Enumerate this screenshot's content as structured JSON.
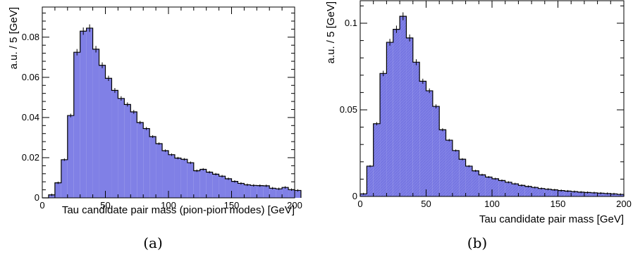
{
  "colors": {
    "fill": "#8080e6",
    "line": "#000000",
    "hatch": "#6e6ede"
  },
  "chart_data": [
    {
      "type": "bar",
      "caption": "(a)",
      "xlabel": "Tau candidate pair mass (pion-pion modes) [GeV]",
      "ylabel": "a.u. / 5 [GeV]",
      "xlim": [
        0,
        200
      ],
      "ylim": [
        0,
        0.095
      ],
      "bin_width": 5,
      "x_ticks": [
        0,
        50,
        100,
        150,
        200
      ],
      "y_ticks": [
        0,
        0.02,
        0.04,
        0.06,
        0.08
      ],
      "y_tick_labels": [
        "0",
        "0.02",
        "0.04",
        "0.06",
        "0.08"
      ],
      "bin_edges_start": 0,
      "values": [
        0.0,
        0.0015,
        0.0075,
        0.019,
        0.041,
        0.0725,
        0.083,
        0.0845,
        0.074,
        0.066,
        0.0595,
        0.0535,
        0.0495,
        0.0465,
        0.0428,
        0.0375,
        0.0345,
        0.0305,
        0.027,
        0.0235,
        0.0215,
        0.0198,
        0.0192,
        0.0175,
        0.0135,
        0.0142,
        0.0128,
        0.0118,
        0.0108,
        0.0095,
        0.0082,
        0.0072,
        0.0065,
        0.0062,
        0.0061,
        0.006,
        0.0048,
        0.0045,
        0.0052,
        0.0041,
        0.0037
      ]
    },
    {
      "type": "bar",
      "caption": "(b)",
      "xlabel": "Tau candidate pair mass [GeV]",
      "ylabel": "a.u. / 5 [GeV]",
      "xlim": [
        0,
        200
      ],
      "ylim": [
        0,
        0.113
      ],
      "bin_width": 5,
      "x_ticks": [
        0,
        50,
        100,
        150,
        200
      ],
      "y_ticks": [
        0,
        0.05,
        0.1
      ],
      "y_tick_labels": [
        "0",
        "0.05",
        "0.1"
      ],
      "bin_edges_start": 0,
      "values": [
        0.0015,
        0.0175,
        0.042,
        0.071,
        0.089,
        0.0965,
        0.104,
        0.0915,
        0.0775,
        0.0665,
        0.061,
        0.052,
        0.0385,
        0.0325,
        0.0265,
        0.0215,
        0.0175,
        0.0148,
        0.0125,
        0.0112,
        0.0102,
        0.0092,
        0.0082,
        0.0073,
        0.0064,
        0.0058,
        0.0052,
        0.0046,
        0.0042,
        0.0038,
        0.0034,
        0.0031,
        0.0028,
        0.0025,
        0.0023,
        0.0021,
        0.0019,
        0.0017,
        0.0015,
        0.0012
      ]
    }
  ]
}
